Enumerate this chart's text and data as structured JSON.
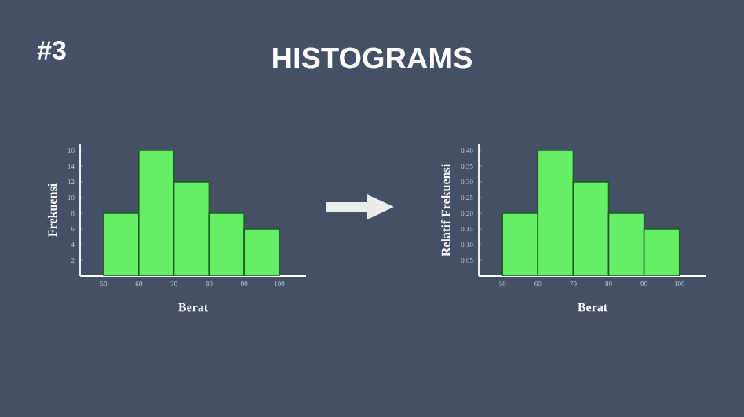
{
  "chart_data": [
    {
      "type": "histogram",
      "title": "HISTOGRAMS",
      "annotations": [
        "#3"
      ],
      "xlabel": "Berat",
      "ylabel": "Frekuensi",
      "bins": [
        50,
        60,
        70,
        80,
        90,
        100
      ],
      "values": [
        8,
        16,
        12,
        8,
        6
      ],
      "color": "#66ee66",
      "xlim": [
        43.3,
        107.6
      ],
      "ylim": [
        0,
        16.8
      ],
      "xticks": [
        50,
        60,
        70,
        80,
        90,
        100
      ],
      "yticks": [
        2,
        4,
        6,
        8,
        10,
        12,
        14,
        16
      ]
    },
    {
      "type": "histogram",
      "xlabel": "Berat",
      "ylabel": "Relatif Frekuensi",
      "bins": [
        50,
        60,
        70,
        80,
        90,
        100
      ],
      "values": [
        0.2,
        0.4,
        0.3,
        0.2,
        0.15
      ],
      "color": "#66ee66",
      "xlim": [
        43.3,
        107.6
      ],
      "ylim": [
        0,
        0.42
      ],
      "xticks": [
        50,
        60,
        70,
        80,
        90,
        100
      ],
      "yticks": [
        0.05,
        {
          "value": 0.1,
          "label": "0.10"
        },
        0.15,
        {
          "value": 0.2,
          "label": "0.20"
        },
        0.25,
        {
          "value": 0.3,
          "label": "0.30"
        },
        0.35,
        {
          "value": 0.4,
          "label": "0.40"
        }
      ]
    }
  ]
}
